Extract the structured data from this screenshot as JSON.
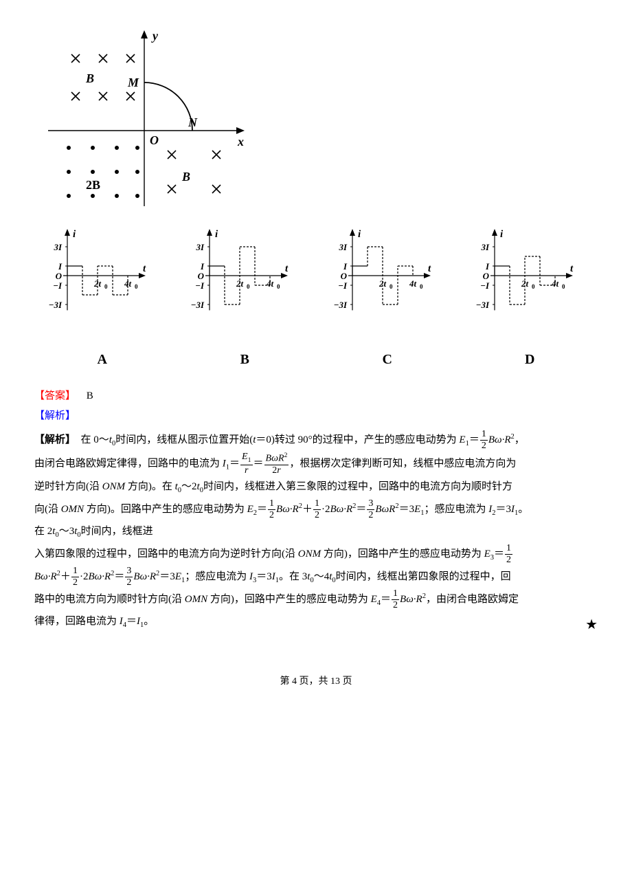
{
  "main_diagram": {
    "axis_color": "#000000",
    "stroke_width": 1.4,
    "labels": {
      "y": "y",
      "x": "x",
      "O": "O",
      "M": "M",
      "N": "N",
      "B_q2": "B",
      "B_q4": "B",
      "twoB": "2B"
    },
    "label_fontsize": 18,
    "label_fontstyle": "italic",
    "label_fontweight": "bold",
    "cross_size": 6,
    "dot_radius": 3,
    "arc_radius": 70
  },
  "graphs": {
    "common": {
      "axis_color": "#000000",
      "dash_pattern": "3,2",
      "stroke_width": 1.2,
      "label_fontsize": 13,
      "y_axis_label": "i",
      "x_axis_label": "t",
      "origin_label": "O",
      "y_ticks_pos": [
        "3I",
        "I"
      ],
      "y_ticks_neg": [
        "−I",
        "−3I"
      ],
      "x_ticks": [
        "2t₀",
        "4t₀"
      ],
      "unit_I": 14,
      "unit_t": 22
    },
    "options": [
      {
        "label": "A",
        "segments": [
          {
            "t_start": 0,
            "t_end": 1,
            "value": 1
          },
          {
            "t_start": 1,
            "t_end": 2,
            "value": -2
          },
          {
            "t_start": 2,
            "t_end": 3,
            "value": 1
          },
          {
            "t_start": 3,
            "t_end": 4,
            "value": -2
          }
        ]
      },
      {
        "label": "B",
        "segments": [
          {
            "t_start": 0,
            "t_end": 1,
            "value": 1
          },
          {
            "t_start": 1,
            "t_end": 2,
            "value": -3
          },
          {
            "t_start": 2,
            "t_end": 3,
            "value": 3
          },
          {
            "t_start": 3,
            "t_end": 4,
            "value": -1
          }
        ]
      },
      {
        "label": "C",
        "segments": [
          {
            "t_start": 0,
            "t_end": 1,
            "value": 1
          },
          {
            "t_start": 1,
            "t_end": 2,
            "value": 3
          },
          {
            "t_start": 2,
            "t_end": 3,
            "value": -3
          },
          {
            "t_start": 3,
            "t_end": 4,
            "value": 1
          }
        ]
      },
      {
        "label": "D",
        "segments": [
          {
            "t_start": 0,
            "t_end": 1,
            "value": 1
          },
          {
            "t_start": 1,
            "t_end": 2,
            "value": -3
          },
          {
            "t_start": 2,
            "t_end": 3,
            "value": 2
          },
          {
            "t_start": 3,
            "t_end": 4,
            "value": -1
          }
        ]
      }
    ]
  },
  "answer_label": "【答案】",
  "answer_value": "B",
  "analysis_label": "【解析】",
  "explain_label": "【解析】",
  "page_footer": {
    "prefix": "第 ",
    "current": "4",
    "mid": " 页，共 ",
    "total": "13",
    "suffix": " 页"
  },
  "star": "★"
}
